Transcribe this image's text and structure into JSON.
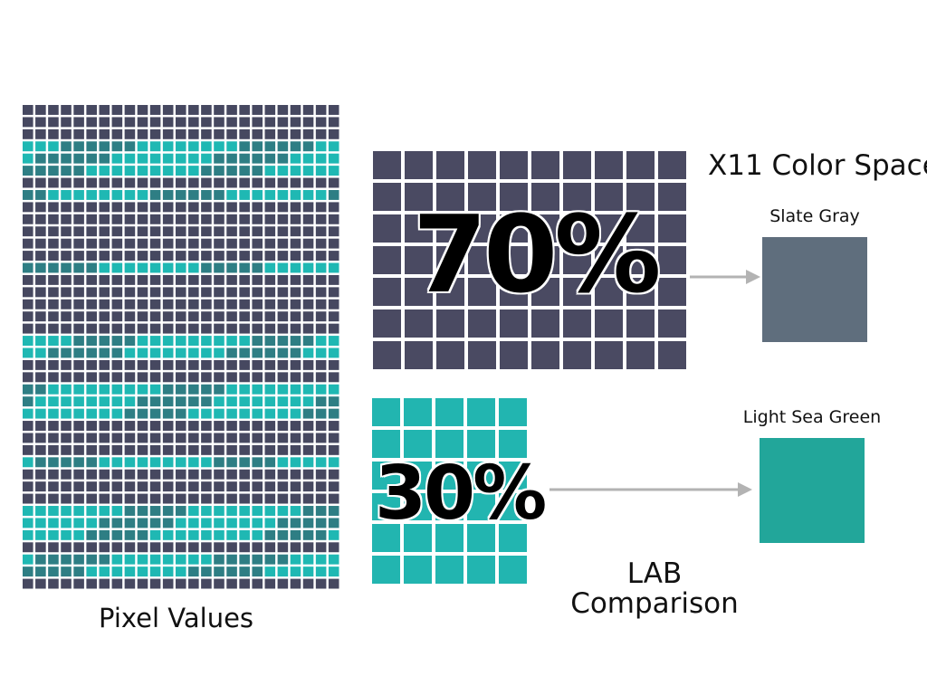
{
  "labels": {
    "pixel_values": "Pixel Values",
    "color_space": "X11 Color Space",
    "lab_line1": "LAB",
    "lab_line2": "Comparison"
  },
  "segments": [
    {
      "percent": "70%",
      "color_name": "Slate Gray",
      "color": "#4a4a62",
      "swatch_color": "#5f6e7d"
    },
    {
      "percent": "30%",
      "color_name": "Light Sea Green",
      "color": "#22b5b0",
      "swatch_color": "#22a69a"
    }
  ],
  "colors": {
    "arrow": "#b3b3b3",
    "mosaic_dark": "#464860",
    "mosaic_teal": "#1fb8b3"
  },
  "icons": [
    "arrow-right-icon"
  ]
}
